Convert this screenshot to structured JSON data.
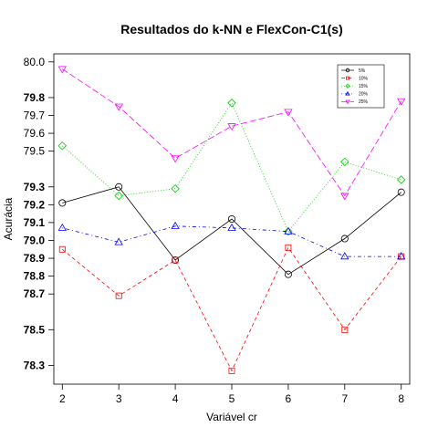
{
  "chart_data": {
    "type": "line",
    "title": "Resultados do k-NN e FlexCon-C1(s)",
    "xlabel": "Variável cr",
    "ylabel": "Acurácia",
    "x": [
      2,
      3,
      4,
      5,
      6,
      7,
      8
    ],
    "xlim": [
      1.85,
      8.15
    ],
    "ylim": [
      78.195,
      80.045
    ],
    "y_ticks": [
      {
        "value": 78.3,
        "label": "78.3",
        "bold": true
      },
      {
        "value": 78.5,
        "label": "78.5",
        "bold": true
      },
      {
        "value": 78.7,
        "label": "78.7",
        "bold": true
      },
      {
        "value": 78.8,
        "label": "78.8",
        "bold": true
      },
      {
        "value": 78.9,
        "label": "78.9",
        "bold": true
      },
      {
        "value": 79.0,
        "label": "79.0",
        "bold": true
      },
      {
        "value": 79.1,
        "label": "79.1",
        "bold": true
      },
      {
        "value": 79.2,
        "label": "79.2",
        "bold": true
      },
      {
        "value": 79.3,
        "label": "79.3",
        "bold": true
      },
      {
        "value": 79.5,
        "label": "79.5",
        "bold": false
      },
      {
        "value": 79.6,
        "label": "79.6",
        "bold": false
      },
      {
        "value": 79.7,
        "label": "79.7",
        "bold": false
      },
      {
        "value": 79.8,
        "label": "79.8",
        "bold": true
      },
      {
        "value": 80.0,
        "label": "80.0",
        "bold": false
      }
    ],
    "x_ticks": [
      "2",
      "3",
      "4",
      "5",
      "6",
      "7",
      "8"
    ],
    "legend_position": "top-right",
    "series": [
      {
        "name": "5%",
        "color": "#000000",
        "marker": "circle",
        "dash": "solid",
        "values": [
          79.21,
          79.3,
          78.89,
          79.12,
          78.81,
          79.01,
          79.27
        ]
      },
      {
        "name": "10%",
        "color": "#ff0000",
        "marker": "square",
        "dash": "dashed",
        "values": [
          78.95,
          78.69,
          78.89,
          78.27,
          78.96,
          78.5,
          78.91
        ]
      },
      {
        "name": "15%",
        "color": "#00cc00",
        "marker": "diamond",
        "dash": "dotted",
        "values": [
          79.53,
          79.25,
          79.29,
          79.77,
          79.05,
          79.44,
          79.34
        ]
      },
      {
        "name": "20%",
        "color": "#0000ff",
        "marker": "triangle-up",
        "dash": "dotdash",
        "values": [
          79.07,
          78.99,
          79.08,
          79.07,
          79.05,
          78.91,
          78.91
        ]
      },
      {
        "name": "25%",
        "color": "#ff00ff",
        "marker": "triangle-down",
        "dash": "longdash",
        "values": [
          79.96,
          79.75,
          79.46,
          79.64,
          79.72,
          79.25,
          79.78
        ]
      }
    ]
  }
}
